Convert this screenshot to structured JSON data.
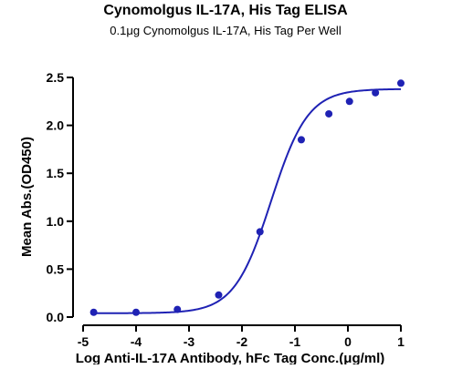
{
  "chart_data": {
    "type": "scatter",
    "title": "Cynomolgus IL-17A, His Tag ELISA",
    "subtitle": "0.1μg Cynomolgus IL-17A, His Tag Per Well",
    "xlabel": "Log Anti-IL-17A Antibody, hFc Tag Conc.(μg/ml)",
    "ylabel": "Mean Abs.(OD450)",
    "xlim": [
      -5,
      1
    ],
    "ylim": [
      0,
      2.5
    ],
    "xticks": [
      "-5",
      "-4",
      "-3",
      "-2",
      "-1",
      "0",
      "1"
    ],
    "yticks": [
      "0.0",
      "0.5",
      "1.0",
      "1.5",
      "2.0",
      "2.5"
    ],
    "grid": false,
    "legend": "none",
    "series": [
      {
        "color": "#1f22b4",
        "points": [
          {
            "x": -4.8,
            "y": 0.05
          },
          {
            "x": -4.0,
            "y": 0.05
          },
          {
            "x": -3.22,
            "y": 0.08
          },
          {
            "x": -2.44,
            "y": 0.23
          },
          {
            "x": -1.66,
            "y": 0.89
          },
          {
            "x": -0.88,
            "y": 1.85
          },
          {
            "x": -0.36,
            "y": 2.12
          },
          {
            "x": 0.03,
            "y": 2.25
          },
          {
            "x": 0.52,
            "y": 2.34
          },
          {
            "x": 1.0,
            "y": 2.44
          }
        ],
        "fit": {
          "model": "4PL",
          "bottom": 0.04,
          "top": 2.38,
          "logEC50": -1.45,
          "hill": 1.25
        }
      }
    ]
  }
}
